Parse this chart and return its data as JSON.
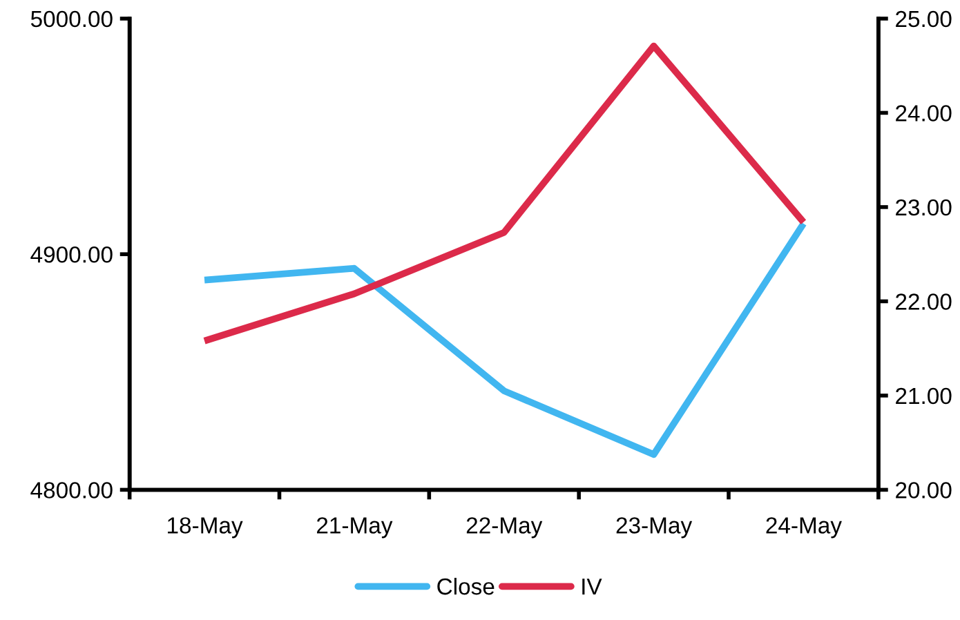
{
  "chart_data": {
    "type": "line",
    "categories": [
      "18-May",
      "21-May",
      "22-May",
      "23-May",
      "24-May"
    ],
    "series": [
      {
        "name": "Close",
        "color": "#41b6f0",
        "values": [
          4889,
          4894,
          4842,
          4815,
          4913
        ]
      },
      {
        "name": "IV",
        "color": "#dc2a4a",
        "axis": "y2",
        "values": [
          21.58,
          22.08,
          22.73,
          24.71,
          22.84
        ]
      }
    ],
    "ylim": [
      4800,
      5000
    ],
    "yticks": [
      {
        "value": 4800,
        "label": "4800.00"
      },
      {
        "value": 4900,
        "label": "4900.00"
      },
      {
        "value": 5000,
        "label": "5000.00"
      }
    ],
    "y2lim": [
      20,
      25
    ],
    "y2ticks": [
      {
        "value": 20,
        "label": "20.00"
      },
      {
        "value": 21,
        "label": "21.00"
      },
      {
        "value": 22,
        "label": "22.00"
      },
      {
        "value": 23,
        "label": "23.00"
      },
      {
        "value": 24,
        "label": "24.00"
      },
      {
        "value": 25,
        "label": "25.00"
      }
    ],
    "grid": false,
    "legend": "bottom",
    "marker": "none",
    "line_style": "solid"
  }
}
